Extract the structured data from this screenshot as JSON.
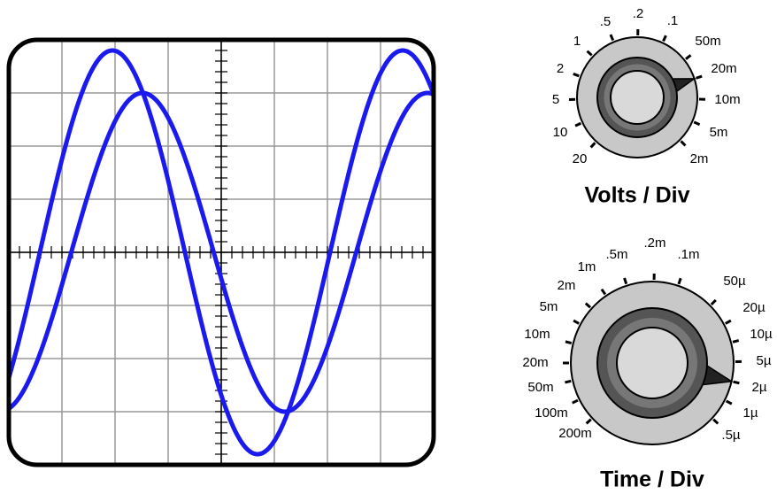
{
  "knobs": [
    {
      "caption": "Volts / Div",
      "settings": [
        ".5",
        ".2",
        ".1",
        "50m",
        "20m",
        "10m",
        "5m",
        "2m",
        "20",
        "10",
        "5",
        "2",
        "1"
      ]
    },
    {
      "caption": "Time / Div",
      "settings": [
        ".5m",
        ".2m",
        ".1m",
        "50µ",
        "20µ",
        "10µ",
        "5µ",
        "2µ",
        "1µ",
        ".5µ",
        "200m",
        "100m",
        "50m",
        "20m",
        "10m",
        "5m",
        "2m",
        "1m"
      ]
    }
  ]
}
